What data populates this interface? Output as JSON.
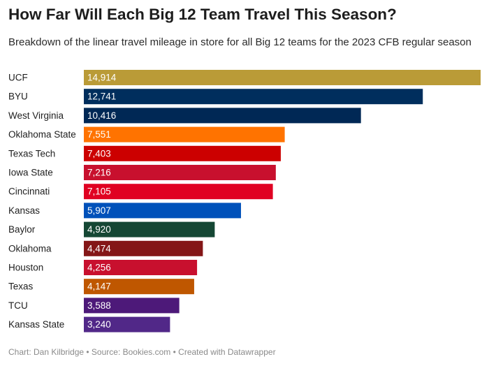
{
  "chart_data": {
    "type": "bar",
    "orientation": "horizontal",
    "title": "How Far Will Each Big 12 Team Travel This Season?",
    "subtitle": "Breakdown of the linear travel mileage in store for all Big 12 teams for the 2023 CFB regular season",
    "xlabel": "",
    "ylabel": "",
    "xlim": [
      0,
      14914
    ],
    "categories": [
      "UCF",
      "BYU",
      "West Virginia",
      "Oklahoma State",
      "Texas Tech",
      "Iowa State",
      "Cincinnati",
      "Kansas",
      "Baylor",
      "Oklahoma",
      "Houston",
      "Texas",
      "TCU",
      "Kansas State"
    ],
    "values": [
      14914,
      12741,
      10416,
      7551,
      7403,
      7216,
      7105,
      5907,
      4920,
      4474,
      4256,
      4147,
      3588,
      3240
    ],
    "value_labels": [
      "14,914",
      "12,741",
      "10,416",
      "7,551",
      "7,403",
      "7,216",
      "7,105",
      "5,907",
      "4,920",
      "4,474",
      "4,256",
      "4,147",
      "3,588",
      "3,240"
    ],
    "colors": [
      "#BA9B37",
      "#002E5D",
      "#002855",
      "#FF7300",
      "#CC0000",
      "#C8102E",
      "#E00122",
      "#0051BA",
      "#154734",
      "#841617",
      "#C8102E",
      "#BF5700",
      "#4D1979",
      "#512888"
    ]
  },
  "footer": {
    "text": "Chart: Dan Kilbridge • Source: Bookies.com • Created with Datawrapper"
  }
}
